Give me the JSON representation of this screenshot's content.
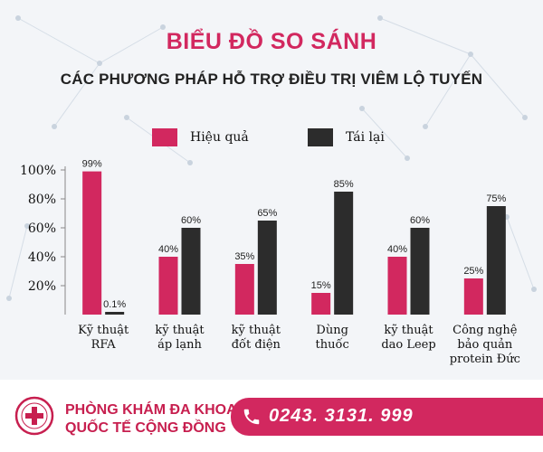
{
  "title": "BIỂU ĐỒ SO SÁNH",
  "subtitle": "CÁC PHƯƠNG PHÁP HỖ TRỢ ĐIỀU TRỊ VIÊM LỘ TUYẾN",
  "legend": {
    "series1": "Hiệu quả",
    "series2": "Tái lại"
  },
  "colors": {
    "series1": "#d2285f",
    "series2": "#2c2c2c",
    "accent": "#d2285f"
  },
  "footer": {
    "clinic_line1": "PHÒNG KHÁM ĐA KHOA",
    "clinic_line2": "QUỐC TẾ CỘNG ĐỒNG",
    "phone": "0243. 3131. 999"
  },
  "chart_data": {
    "type": "bar",
    "title": "BIỂU ĐỒ SO SÁNH",
    "subtitle": "CÁC PHƯƠNG PHÁP HỖ TRỢ ĐIỀU TRỊ VIÊM LỘ TUYẾN",
    "categories": [
      [
        "Kỹ thuật",
        "RFA"
      ],
      [
        "kỹ thuật",
        "áp lạnh"
      ],
      [
        "kỹ thuật",
        "đốt điện"
      ],
      [
        "Dùng",
        "thuốc"
      ],
      [
        "kỹ thuật",
        "dao Leep"
      ],
      [
        "Công nghệ",
        "bảo quản",
        "protein Đức"
      ]
    ],
    "series": [
      {
        "name": "Hiệu quả",
        "values": [
          99,
          40,
          35,
          15,
          40,
          25
        ],
        "labels": [
          "99%",
          "40%",
          "35%",
          "15%",
          "40%",
          "25%"
        ]
      },
      {
        "name": "Tái lại",
        "values": [
          0.1,
          60,
          65,
          85,
          60,
          75
        ],
        "labels": [
          "0.1%",
          "60%",
          "65%",
          "85%",
          "60%",
          "75%"
        ]
      }
    ],
    "ylim": [
      0,
      100
    ],
    "yticks": [
      20,
      40,
      60,
      80,
      100
    ],
    "yticklabels": [
      "20%",
      "40%",
      "60%",
      "80%",
      "100%"
    ],
    "legend": "top",
    "grid": false
  }
}
